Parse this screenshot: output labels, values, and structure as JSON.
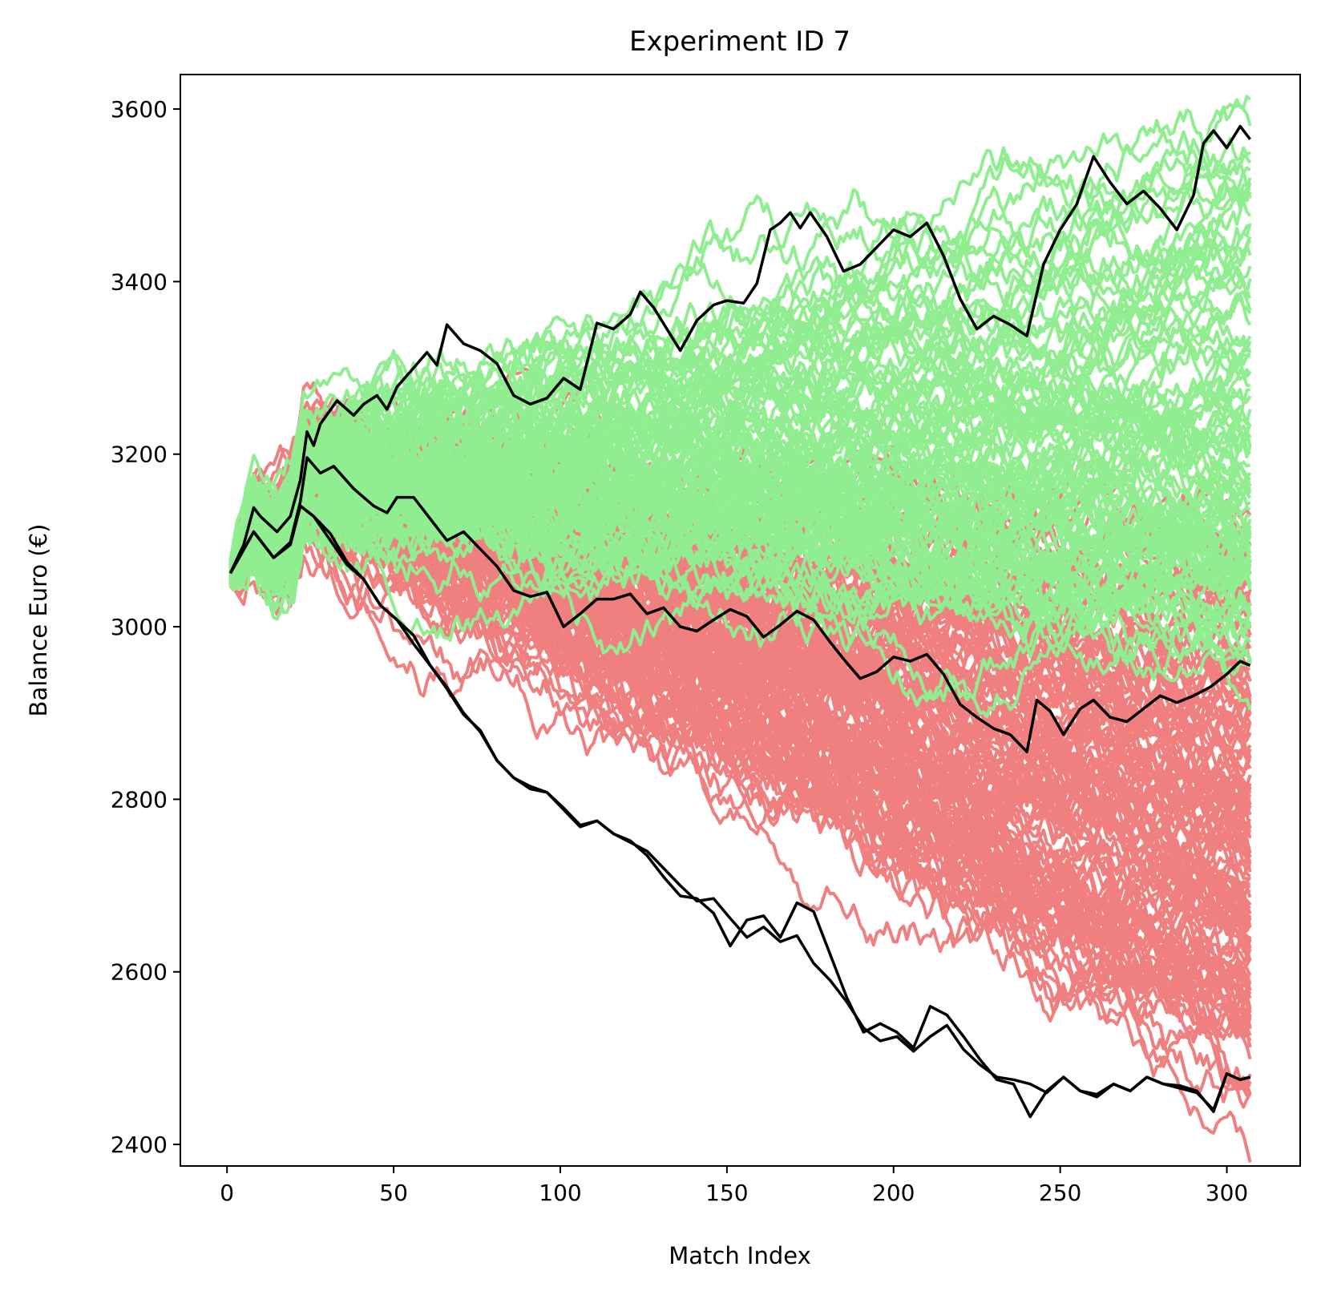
{
  "chart_data": {
    "type": "line",
    "title": "Experiment ID 7",
    "xlabel": "Match Index",
    "ylabel": "Balance Euro (€)",
    "xlim": [
      -14,
      322
    ],
    "ylim": [
      2375,
      3640
    ],
    "xticks": [
      0,
      50,
      100,
      150,
      200,
      250,
      300
    ],
    "yticks": [
      2400,
      2600,
      2800,
      3000,
      3200,
      3400,
      3600
    ],
    "grid": false,
    "legend": "none",
    "colors": {
      "gain": "#90ee90",
      "loss": "#f08080",
      "envelope": "#000000"
    },
    "simulated_paths": {
      "gain_count": 100,
      "loss_count": 140
    },
    "series": [
      {
        "role": "max",
        "points": [
          [
            1,
            3062
          ],
          [
            5,
            3095
          ],
          [
            8,
            3138
          ],
          [
            10,
            3128
          ],
          [
            15,
            3110
          ],
          [
            19,
            3128
          ],
          [
            22,
            3170
          ],
          [
            24,
            3226
          ],
          [
            26,
            3210
          ],
          [
            28,
            3235
          ],
          [
            33,
            3262
          ],
          [
            38,
            3245
          ],
          [
            41,
            3258
          ],
          [
            45,
            3268
          ],
          [
            48,
            3252
          ],
          [
            51,
            3278
          ],
          [
            56,
            3300
          ],
          [
            60,
            3318
          ],
          [
            63,
            3303
          ],
          [
            66,
            3350
          ],
          [
            71,
            3328
          ],
          [
            76,
            3320
          ],
          [
            81,
            3305
          ],
          [
            86,
            3268
          ],
          [
            91,
            3258
          ],
          [
            96,
            3265
          ],
          [
            101,
            3288
          ],
          [
            106,
            3275
          ],
          [
            111,
            3352
          ],
          [
            116,
            3345
          ],
          [
            121,
            3362
          ],
          [
            124,
            3388
          ],
          [
            128,
            3370
          ],
          [
            132,
            3345
          ],
          [
            136,
            3320
          ],
          [
            141,
            3355
          ],
          [
            146,
            3373
          ],
          [
            150,
            3378
          ],
          [
            155,
            3375
          ],
          [
            159,
            3398
          ],
          [
            163,
            3460
          ],
          [
            166,
            3468
          ],
          [
            169,
            3480
          ],
          [
            172,
            3462
          ],
          [
            175,
            3480
          ],
          [
            180,
            3452
          ],
          [
            185,
            3412
          ],
          [
            190,
            3420
          ],
          [
            195,
            3440
          ],
          [
            200,
            3460
          ],
          [
            205,
            3452
          ],
          [
            210,
            3468
          ],
          [
            215,
            3430
          ],
          [
            220,
            3380
          ],
          [
            225,
            3345
          ],
          [
            230,
            3360
          ],
          [
            235,
            3350
          ],
          [
            240,
            3337
          ],
          [
            245,
            3420
          ],
          [
            250,
            3460
          ],
          [
            255,
            3490
          ],
          [
            260,
            3545
          ],
          [
            265,
            3515
          ],
          [
            270,
            3490
          ],
          [
            275,
            3505
          ],
          [
            280,
            3485
          ],
          [
            285,
            3460
          ],
          [
            290,
            3500
          ],
          [
            293,
            3560
          ],
          [
            296,
            3575
          ],
          [
            300,
            3555
          ],
          [
            304,
            3580
          ],
          [
            307,
            3565
          ]
        ]
      },
      {
        "role": "upper-median",
        "points": [
          [
            1,
            3062
          ],
          [
            8,
            3110
          ],
          [
            14,
            3080
          ],
          [
            19,
            3098
          ],
          [
            22,
            3145
          ],
          [
            24,
            3196
          ],
          [
            28,
            3178
          ],
          [
            32,
            3186
          ],
          [
            38,
            3160
          ],
          [
            44,
            3140
          ],
          [
            48,
            3132
          ],
          [
            51,
            3150
          ],
          [
            56,
            3150
          ],
          [
            61,
            3125
          ],
          [
            66,
            3100
          ],
          [
            71,
            3110
          ],
          [
            76,
            3090
          ],
          [
            81,
            3070
          ],
          [
            86,
            3042
          ],
          [
            91,
            3035
          ],
          [
            96,
            3040
          ],
          [
            101,
            3000
          ],
          [
            106,
            3015
          ],
          [
            111,
            3032
          ],
          [
            116,
            3032
          ],
          [
            121,
            3038
          ],
          [
            126,
            3015
          ],
          [
            131,
            3022
          ],
          [
            136,
            3000
          ],
          [
            141,
            2995
          ],
          [
            146,
            3008
          ],
          [
            151,
            3020
          ],
          [
            156,
            3012
          ],
          [
            161,
            2988
          ],
          [
            166,
            3002
          ],
          [
            171,
            3018
          ],
          [
            176,
            3008
          ],
          [
            181,
            2982
          ],
          [
            186,
            2958
          ],
          [
            190,
            2940
          ],
          [
            195,
            2948
          ],
          [
            200,
            2965
          ],
          [
            205,
            2960
          ],
          [
            210,
            2968
          ],
          [
            215,
            2945
          ],
          [
            220,
            2910
          ],
          [
            225,
            2895
          ],
          [
            230,
            2882
          ],
          [
            235,
            2875
          ],
          [
            240,
            2855
          ],
          [
            243,
            2915
          ],
          [
            247,
            2902
          ],
          [
            251,
            2875
          ],
          [
            256,
            2905
          ],
          [
            260,
            2915
          ],
          [
            265,
            2895
          ],
          [
            270,
            2890
          ],
          [
            275,
            2905
          ],
          [
            280,
            2920
          ],
          [
            285,
            2912
          ],
          [
            290,
            2920
          ],
          [
            295,
            2930
          ],
          [
            300,
            2945
          ],
          [
            304,
            2960
          ],
          [
            307,
            2955
          ]
        ]
      },
      {
        "role": "lower-median",
        "points": [
          [
            1,
            3062
          ],
          [
            8,
            3110
          ],
          [
            14,
            3080
          ],
          [
            19,
            3095
          ],
          [
            22,
            3140
          ],
          [
            26,
            3128
          ],
          [
            31,
            3108
          ],
          [
            36,
            3075
          ],
          [
            41,
            3055
          ],
          [
            46,
            3025
          ],
          [
            51,
            3008
          ],
          [
            56,
            2980
          ],
          [
            61,
            2955
          ],
          [
            66,
            2930
          ],
          [
            71,
            2900
          ],
          [
            76,
            2878
          ],
          [
            81,
            2845
          ],
          [
            86,
            2825
          ],
          [
            91,
            2815
          ],
          [
            96,
            2808
          ],
          [
            101,
            2790
          ],
          [
            106,
            2770
          ],
          [
            111,
            2775
          ],
          [
            116,
            2760
          ],
          [
            121,
            2750
          ],
          [
            126,
            2740
          ],
          [
            131,
            2720
          ],
          [
            136,
            2700
          ],
          [
            141,
            2682
          ],
          [
            146,
            2685
          ],
          [
            151,
            2662
          ],
          [
            156,
            2640
          ],
          [
            161,
            2652
          ],
          [
            166,
            2635
          ],
          [
            171,
            2642
          ],
          [
            176,
            2610
          ],
          [
            181,
            2590
          ],
          [
            186,
            2565
          ],
          [
            191,
            2535
          ],
          [
            196,
            2520
          ],
          [
            201,
            2525
          ],
          [
            206,
            2508
          ],
          [
            211,
            2525
          ],
          [
            216,
            2538
          ],
          [
            221,
            2510
          ],
          [
            226,
            2492
          ],
          [
            231,
            2478
          ],
          [
            236,
            2475
          ],
          [
            241,
            2470
          ],
          [
            246,
            2460
          ],
          [
            251,
            2478
          ],
          [
            256,
            2462
          ],
          [
            261,
            2458
          ],
          [
            266,
            2470
          ],
          [
            271,
            2462
          ],
          [
            276,
            2478
          ],
          [
            281,
            2470
          ],
          [
            286,
            2465
          ],
          [
            291,
            2460
          ],
          [
            296,
            2440
          ],
          [
            300,
            2482
          ],
          [
            304,
            2475
          ],
          [
            307,
            2478
          ]
        ]
      },
      {
        "role": "min",
        "points": [
          [
            1,
            3062
          ],
          [
            8,
            3110
          ],
          [
            14,
            3080
          ],
          [
            19,
            3095
          ],
          [
            22,
            3140
          ],
          [
            26,
            3128
          ],
          [
            31,
            3100
          ],
          [
            36,
            3072
          ],
          [
            41,
            3055
          ],
          [
            46,
            3025
          ],
          [
            51,
            3008
          ],
          [
            56,
            2990
          ],
          [
            61,
            2955
          ],
          [
            66,
            2928
          ],
          [
            71,
            2898
          ],
          [
            76,
            2880
          ],
          [
            81,
            2845
          ],
          [
            86,
            2825
          ],
          [
            91,
            2812
          ],
          [
            96,
            2808
          ],
          [
            101,
            2788
          ],
          [
            106,
            2768
          ],
          [
            111,
            2775
          ],
          [
            116,
            2760
          ],
          [
            121,
            2752
          ],
          [
            126,
            2735
          ],
          [
            131,
            2710
          ],
          [
            136,
            2688
          ],
          [
            141,
            2685
          ],
          [
            146,
            2668
          ],
          [
            151,
            2630
          ],
          [
            156,
            2660
          ],
          [
            161,
            2665
          ],
          [
            166,
            2640
          ],
          [
            171,
            2680
          ],
          [
            176,
            2670
          ],
          [
            181,
            2620
          ],
          [
            186,
            2570
          ],
          [
            191,
            2530
          ],
          [
            196,
            2540
          ],
          [
            201,
            2530
          ],
          [
            206,
            2512
          ],
          [
            211,
            2560
          ],
          [
            216,
            2550
          ],
          [
            221,
            2525
          ],
          [
            226,
            2498
          ],
          [
            231,
            2475
          ],
          [
            236,
            2470
          ],
          [
            241,
            2432
          ],
          [
            246,
            2462
          ],
          [
            251,
            2478
          ],
          [
            256,
            2462
          ],
          [
            261,
            2455
          ],
          [
            266,
            2470
          ],
          [
            271,
            2462
          ],
          [
            276,
            2478
          ],
          [
            281,
            2470
          ],
          [
            286,
            2468
          ],
          [
            291,
            2462
          ],
          [
            296,
            2438
          ],
          [
            300,
            2482
          ],
          [
            304,
            2475
          ],
          [
            307,
            2478
          ]
        ]
      }
    ]
  }
}
